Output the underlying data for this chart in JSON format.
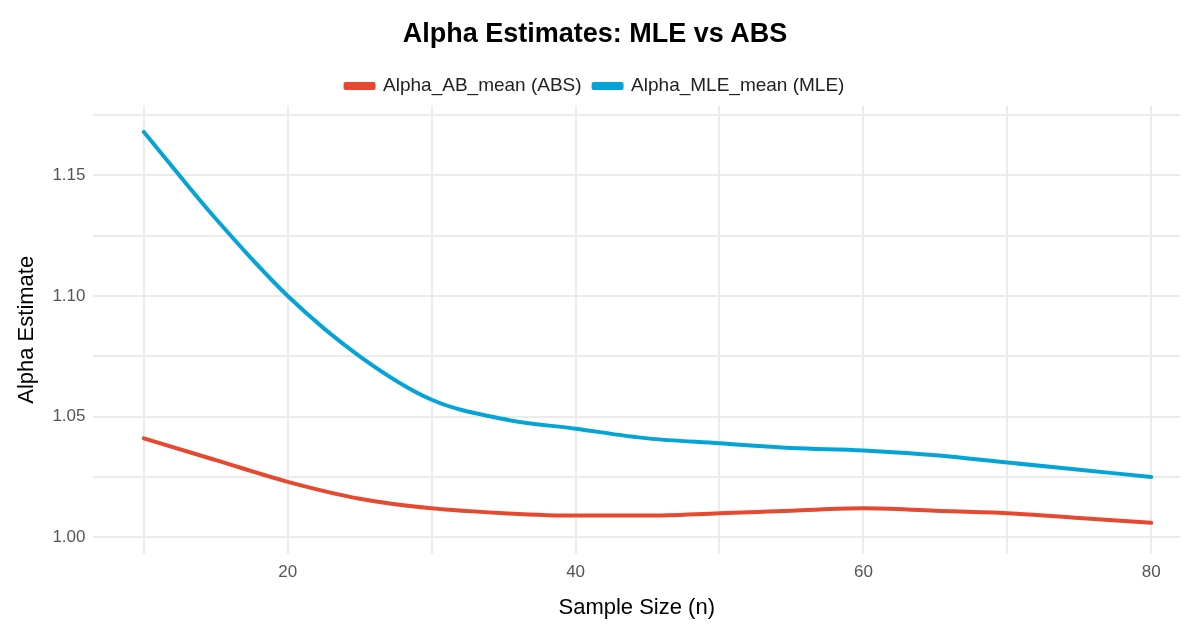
{
  "chart_data": {
    "type": "line",
    "title": "Alpha Estimates: MLE vs ABS",
    "xlabel": "Sample Size (n)",
    "ylabel": "Alpha Estimate",
    "x": [
      10,
      15,
      20,
      25,
      30,
      35,
      40,
      45,
      50,
      55,
      60,
      65,
      70,
      75,
      80
    ],
    "series": [
      {
        "name": "Alpha_AB_mean (ABS)",
        "color": "#e5492f",
        "values": [
          1.041,
          1.032,
          1.023,
          1.016,
          1.012,
          1.01,
          1.009,
          1.009,
          1.01,
          1.011,
          1.012,
          1.011,
          1.01,
          1.008,
          1.006
        ]
      },
      {
        "name": "Alpha_MLE_mean (MLE)",
        "color": "#05a4d6",
        "values": [
          1.168,
          1.132,
          1.1,
          1.075,
          1.057,
          1.049,
          1.045,
          1.041,
          1.039,
          1.037,
          1.036,
          1.034,
          1.031,
          1.028,
          1.025
        ]
      }
    ],
    "xlim": [
      6.5,
      82
    ],
    "ylim": [
      0.993,
      1.179
    ],
    "xticks": [
      {
        "value": 10,
        "label": null
      },
      20,
      {
        "value": 30,
        "label": null
      },
      40,
      {
        "value": 50,
        "label": null
      },
      60,
      {
        "value": 70,
        "label": null
      },
      80
    ],
    "yticks": [
      {
        "value": 1,
        "label": "1.00"
      },
      {
        "value": 1.025,
        "label": null
      },
      {
        "value": 1.05,
        "label": "1.05"
      },
      {
        "value": 1.075,
        "label": null
      },
      {
        "value": 1.1,
        "label": "1.10"
      },
      {
        "value": 1.125,
        "label": null
      },
      {
        "value": 1.15,
        "label": "1.15"
      },
      {
        "value": 1.175,
        "label": null
      }
    ],
    "grid": true,
    "legend": "top",
    "marker": "none",
    "line_style": "solid"
  }
}
